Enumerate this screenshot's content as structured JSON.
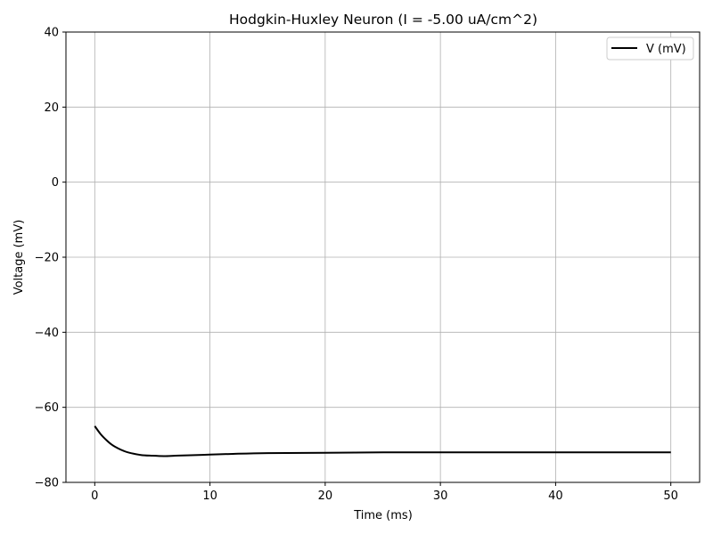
{
  "chart_data": {
    "type": "line",
    "title": "Hodgkin-Huxley Neuron (I = -5.00 uA/cm^2)",
    "xlabel": "Time (ms)",
    "ylabel": "Voltage (mV)",
    "xlim": [
      -2.5,
      52.5
    ],
    "ylim": [
      -80,
      40
    ],
    "xticks": [
      0,
      10,
      20,
      30,
      40,
      50
    ],
    "yticks": [
      -80,
      -60,
      -40,
      -20,
      0,
      20,
      40
    ],
    "xtick_labels": [
      "0",
      "10",
      "20",
      "30",
      "40",
      "50"
    ],
    "ytick_labels": [
      "−80",
      "−60",
      "−40",
      "−20",
      "0",
      "20",
      "40"
    ],
    "grid": true,
    "legend_position": "top-right",
    "series": [
      {
        "name": "V (mV)",
        "color": "#000000",
        "x": [
          0,
          0.5,
          1,
          1.5,
          2,
          2.5,
          3,
          4,
          5,
          6,
          7,
          8,
          10,
          12,
          15,
          20,
          25,
          30,
          35,
          40,
          45,
          50
        ],
        "y": [
          -65,
          -67.1,
          -68.7,
          -70.0,
          -70.9,
          -71.6,
          -72.1,
          -72.7,
          -72.9,
          -73.0,
          -72.9,
          -72.8,
          -72.6,
          -72.4,
          -72.2,
          -72.1,
          -72.0,
          -72.0,
          -72.0,
          -72.0,
          -72.0,
          -72.0
        ]
      }
    ]
  }
}
